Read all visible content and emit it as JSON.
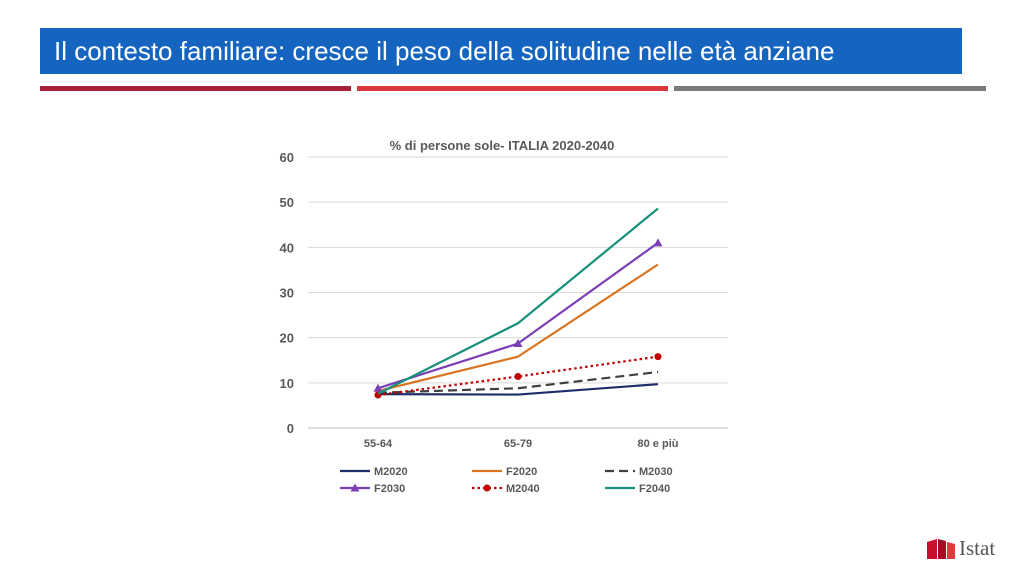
{
  "slide": {
    "title": "Il contesto familiare: cresce il peso della solitudine nelle età anziane",
    "title_bg": "#1565c0",
    "stripes": [
      "#a8203a",
      "#d9373b",
      "#7a7a7a"
    ],
    "logo_text": "Istat"
  },
  "chart_data": {
    "type": "line",
    "title": "% di persone sole- ITALIA 2020-2040",
    "xlabel": "",
    "ylabel": "",
    "categories": [
      "55-64",
      "65-79",
      "80 e più"
    ],
    "ylim": [
      0,
      60
    ],
    "yticks": [
      0,
      10,
      20,
      30,
      40,
      50,
      60
    ],
    "grid": true,
    "legend_position": "bottom",
    "series": [
      {
        "name": "M2020",
        "values": [
          7.5,
          7.4,
          9.7
        ],
        "color": "#1f2d6b",
        "dash": "solid",
        "marker": "none"
      },
      {
        "name": "F2020",
        "values": [
          8.2,
          15.8,
          36.2
        ],
        "color": "#d9731f",
        "dash": "solid",
        "marker": "none"
      },
      {
        "name": "M2030",
        "values": [
          7.8,
          8.8,
          12.4
        ],
        "color": "#404040",
        "dash": "dashed",
        "marker": "none"
      },
      {
        "name": "F2030",
        "values": [
          8.8,
          18.7,
          41.0
        ],
        "color": "#7b3fb5",
        "dash": "solid",
        "marker": "triangle"
      },
      {
        "name": "M2040",
        "values": [
          7.3,
          11.4,
          15.8
        ],
        "color": "#c00000",
        "dash": "dotted",
        "marker": "circle"
      },
      {
        "name": "F2040",
        "values": [
          7.6,
          23.2,
          48.6
        ],
        "color": "#17917a",
        "dash": "solid",
        "marker": "none"
      }
    ]
  }
}
